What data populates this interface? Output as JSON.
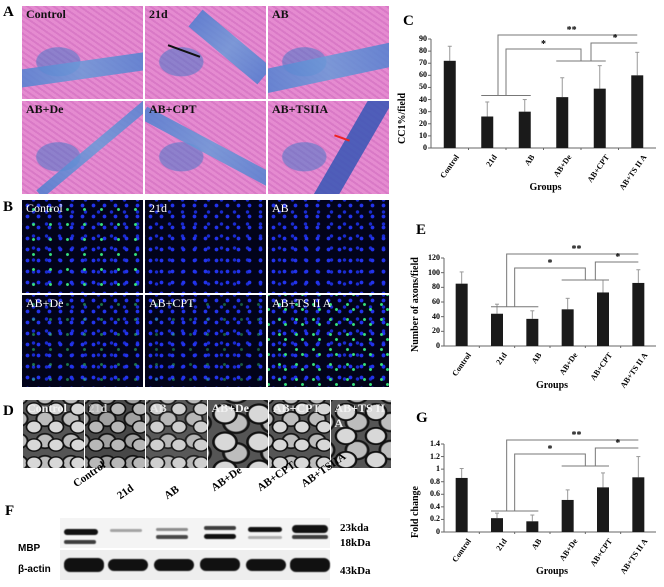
{
  "panels": {
    "A": {
      "label": "A",
      "tiles": [
        "Control",
        "21d",
        "AB",
        "AB+De",
        "AB+CPT",
        "AB+TSIIA"
      ]
    },
    "B": {
      "label": "B",
      "tiles": [
        "Control",
        "21d",
        "AB",
        "AB+De",
        "AB+CPT",
        "AB+TS II A"
      ]
    },
    "D": {
      "label": "D",
      "tiles": [
        "Control",
        "21d",
        "AB",
        "AB+De",
        "AB+CPT",
        "AB+TS II A"
      ]
    },
    "F": {
      "label": "F",
      "lanes": [
        "Control",
        "21d",
        "AB",
        "AB+De",
        "AB+CPT",
        "AB+TSIIA"
      ],
      "rows": [
        "MBP",
        "β-actin"
      ],
      "markers": [
        "23kda",
        "18kDa",
        "43kDa"
      ]
    }
  },
  "chart_data": [
    {
      "panel": "C",
      "type": "bar",
      "title": "",
      "xlabel": "Groups",
      "ylabel": "CC1%/field",
      "categories": [
        "Control",
        "21d",
        "AB",
        "AB+De",
        "AB+CPT",
        "AB+TS II A"
      ],
      "values": [
        72,
        26,
        30,
        42,
        49,
        60
      ],
      "errors": [
        12,
        12,
        10,
        16,
        19,
        19
      ],
      "ylim": [
        0,
        90
      ],
      "yticks": [
        0,
        10,
        20,
        30,
        40,
        50,
        60,
        70,
        80,
        90
      ],
      "annotations": [
        {
          "text": "**",
          "from": "21d/AB",
          "to": "AB+TS II A"
        },
        {
          "text": "*",
          "from": "21d/AB",
          "to": "AB+De/AB+CPT"
        },
        {
          "text": "*",
          "from": "AB+De/AB+CPT",
          "to": "AB+TS II A"
        }
      ]
    },
    {
      "panel": "E",
      "type": "bar",
      "title": "",
      "xlabel": "Groups",
      "ylabel": "Number of axons/field",
      "categories": [
        "Control",
        "21d",
        "AB",
        "AB+De",
        "AB+CPT",
        "AB+TS II A"
      ],
      "values": [
        85,
        44,
        37,
        50,
        73,
        86
      ],
      "errors": [
        16,
        13,
        11,
        15,
        17,
        18
      ],
      "ylim": [
        0,
        120
      ],
      "yticks": [
        0,
        20,
        40,
        60,
        80,
        100,
        120
      ],
      "annotations": [
        {
          "text": "**",
          "from": "21d/AB",
          "to": "AB+TS II A"
        },
        {
          "text": "*",
          "from": "21d/AB",
          "to": "AB+De/AB+CPT"
        },
        {
          "text": "*",
          "from": "AB+De",
          "to": "AB+TS II A"
        }
      ]
    },
    {
      "panel": "G",
      "type": "bar",
      "title": "",
      "xlabel": "Groups",
      "ylabel": "Fold change",
      "categories": [
        "Control",
        "21d",
        "AB",
        "AB+De",
        "AB+CPT",
        "AB+TS II A"
      ],
      "values": [
        0.86,
        0.22,
        0.17,
        0.51,
        0.71,
        0.87
      ],
      "errors": [
        0.15,
        0.08,
        0.1,
        0.16,
        0.23,
        0.33
      ],
      "ylim": [
        0,
        1.4
      ],
      "yticks": [
        "0",
        "0.2",
        "0.4",
        "0.6",
        "0.8",
        "1",
        "1.2",
        "1.4"
      ],
      "annotations": [
        {
          "text": "**",
          "from": "21d/AB",
          "to": "AB+TS II A"
        },
        {
          "text": "*",
          "from": "21d/AB",
          "to": "AB+De/AB+CPT"
        },
        {
          "text": "*",
          "from": "AB+De/AB+CPT",
          "to": "AB+TS II A"
        }
      ]
    }
  ]
}
